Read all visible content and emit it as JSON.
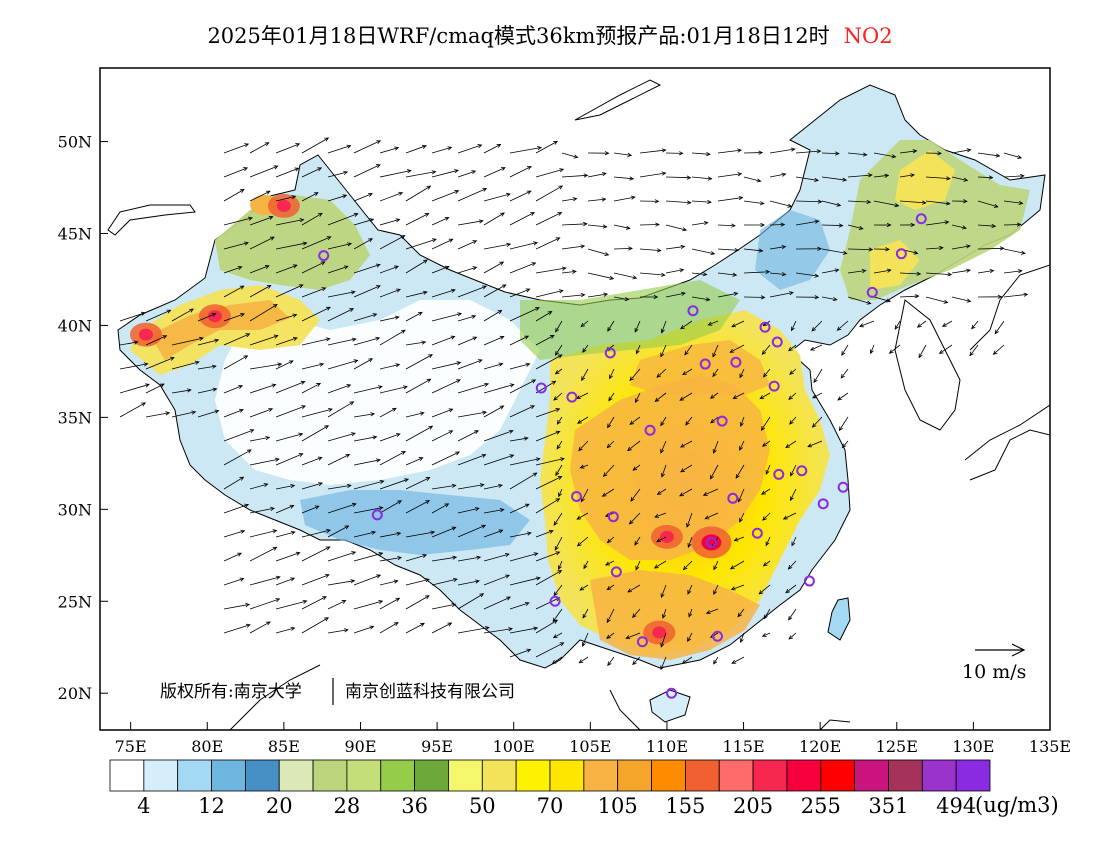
{
  "title": {
    "prefix": "2025年01月18日WRF/cmaq模式36km预报产品:01月18日12时",
    "pollutant": "NO2",
    "pollutant_color": "#ff2020"
  },
  "map": {
    "lon_ticks": [
      "75E",
      "80E",
      "85E",
      "90E",
      "95E",
      "100E",
      "105E",
      "110E",
      "115E",
      "120E",
      "125E",
      "130E",
      "135E"
    ],
    "lat_ticks": [
      "50N",
      "45N",
      "40N",
      "35N",
      "30N",
      "25N",
      "20N"
    ],
    "lon_range": [
      73,
      135
    ],
    "lat_range": [
      18,
      54
    ],
    "copyright_a": "版权所有:南京大学",
    "copyright_b": "南京创蓝科技有限公司",
    "wind_reference": "10 m/s"
  },
  "colorbar": {
    "unit": "(ug/m3)",
    "labels": [
      {
        "text": "4",
        "after_index": 0
      },
      {
        "text": "12",
        "after_index": 2
      },
      {
        "text": "20",
        "after_index": 4
      },
      {
        "text": "28",
        "after_index": 6
      },
      {
        "text": "36",
        "after_index": 8
      },
      {
        "text": "50",
        "after_index": 10
      },
      {
        "text": "70",
        "after_index": 12
      },
      {
        "text": "105",
        "after_index": 14
      },
      {
        "text": "155",
        "after_index": 16
      },
      {
        "text": "205",
        "after_index": 18
      },
      {
        "text": "255",
        "after_index": 20
      },
      {
        "text": "351",
        "after_index": 22
      },
      {
        "text": "494",
        "after_index": 24
      }
    ],
    "colors": [
      "#ffffff",
      "#d6eef9",
      "#a3d9f2",
      "#6eb5e0",
      "#4690c6",
      "#dbe9b6",
      "#bcd57d",
      "#c4df7a",
      "#95cc4a",
      "#6da83a",
      "#f4f66c",
      "#f3e35a",
      "#fff200",
      "#ffe600",
      "#f7b444",
      "#f5a52a",
      "#ff8c00",
      "#f06030",
      "#ff6b6b",
      "#f7284f",
      "#f5003c",
      "#ff0000",
      "#c8147c",
      "#a5325a",
      "#9933cc",
      "#8a2be2"
    ]
  },
  "cities": [
    {
      "lon": 87.6,
      "lat": 43.8
    },
    {
      "lon": 91.1,
      "lat": 29.7
    },
    {
      "lon": 101.8,
      "lat": 36.6
    },
    {
      "lon": 103.8,
      "lat": 36.1
    },
    {
      "lon": 106.3,
      "lat": 38.5
    },
    {
      "lon": 111.7,
      "lat": 40.8
    },
    {
      "lon": 112.5,
      "lat": 37.9
    },
    {
      "lon": 114.5,
      "lat": 38.0
    },
    {
      "lon": 116.4,
      "lat": 39.9
    },
    {
      "lon": 117.2,
      "lat": 39.1
    },
    {
      "lon": 117.0,
      "lat": 36.7
    },
    {
      "lon": 113.6,
      "lat": 34.8
    },
    {
      "lon": 108.9,
      "lat": 34.3
    },
    {
      "lon": 104.1,
      "lat": 30.7
    },
    {
      "lon": 106.5,
      "lat": 29.6
    },
    {
      "lon": 106.7,
      "lat": 26.6
    },
    {
      "lon": 102.7,
      "lat": 25.0
    },
    {
      "lon": 108.4,
      "lat": 22.8
    },
    {
      "lon": 113.3,
      "lat": 23.1
    },
    {
      "lon": 110.3,
      "lat": 20.0
    },
    {
      "lon": 112.9,
      "lat": 28.2
    },
    {
      "lon": 114.3,
      "lat": 30.6
    },
    {
      "lon": 115.9,
      "lat": 28.7
    },
    {
      "lon": 117.3,
      "lat": 31.9
    },
    {
      "lon": 118.8,
      "lat": 32.1
    },
    {
      "lon": 120.2,
      "lat": 30.3
    },
    {
      "lon": 121.5,
      "lat": 31.2
    },
    {
      "lon": 119.3,
      "lat": 26.1
    },
    {
      "lon": 123.4,
      "lat": 41.8
    },
    {
      "lon": 125.3,
      "lat": 43.9
    },
    {
      "lon": 126.6,
      "lat": 45.8
    }
  ],
  "hotspots": [
    {
      "lon": 110.0,
      "lat": 28.5,
      "level": "high"
    },
    {
      "lon": 112.9,
      "lat": 28.2,
      "level": "very-high"
    },
    {
      "lon": 109.5,
      "lat": 23.3,
      "level": "high"
    },
    {
      "lon": 80.5,
      "lat": 40.5,
      "level": "high"
    },
    {
      "lon": 76.0,
      "lat": 39.5,
      "level": "high"
    },
    {
      "lon": 85.0,
      "lat": 46.5,
      "level": "high"
    }
  ]
}
